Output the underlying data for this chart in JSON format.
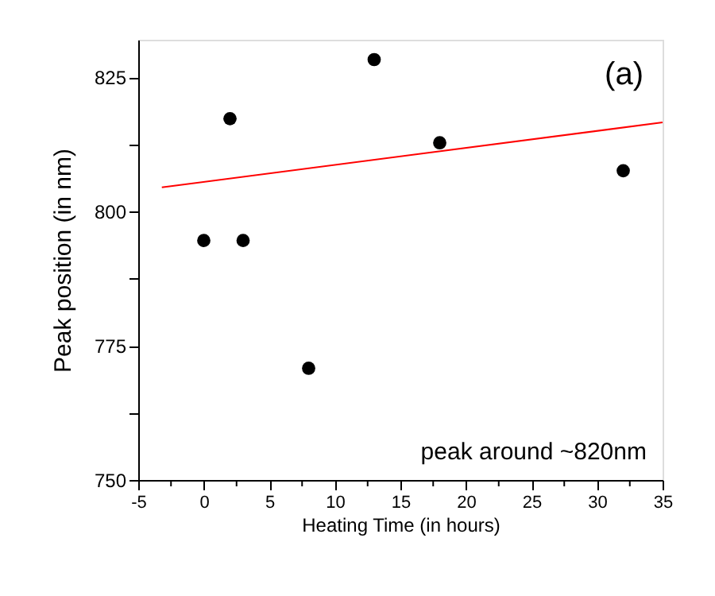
{
  "chart_data": {
    "type": "scatter",
    "xlabel": "Heating Time (in hours)",
    "ylabel": "Peak position (in nm)",
    "series": [
      {
        "color": "#000000",
        "marker": "circle",
        "x": [
          0,
          2,
          3,
          8,
          13,
          18,
          32
        ],
        "values": [
          794.6,
          817.3,
          794.6,
          770.8,
          828.3,
          812.8,
          807.6
        ]
      },
      {
        "type": "line",
        "marker": "none",
        "color": "#ff0000",
        "x": [
          -3.2,
          35
        ],
        "values": [
          804.5,
          816.6
        ]
      }
    ],
    "xlim": [
      -5,
      35
    ],
    "ylim": [
      750,
      832
    ],
    "xticks": [
      -5,
      {
        "value": -2.5,
        "label": null
      },
      0,
      {
        "value": 2.5,
        "label": null
      },
      5,
      {
        "value": 7.5,
        "label": null
      },
      10,
      {
        "value": 12.5,
        "label": null
      },
      15,
      {
        "value": 17.5,
        "label": null
      },
      20,
      {
        "value": 22.5,
        "label": null
      },
      25,
      {
        "value": 27.5,
        "label": null
      },
      30,
      {
        "value": 32.5,
        "label": null
      },
      35
    ],
    "yticks": [
      750,
      {
        "value": 762.5,
        "label": null
      },
      775,
      {
        "value": 787.5,
        "label": null
      },
      800,
      {
        "value": 812.5,
        "label": null
      },
      825
    ],
    "grid": false,
    "annotations": [
      "(a)",
      "peak around ~820nm"
    ]
  }
}
